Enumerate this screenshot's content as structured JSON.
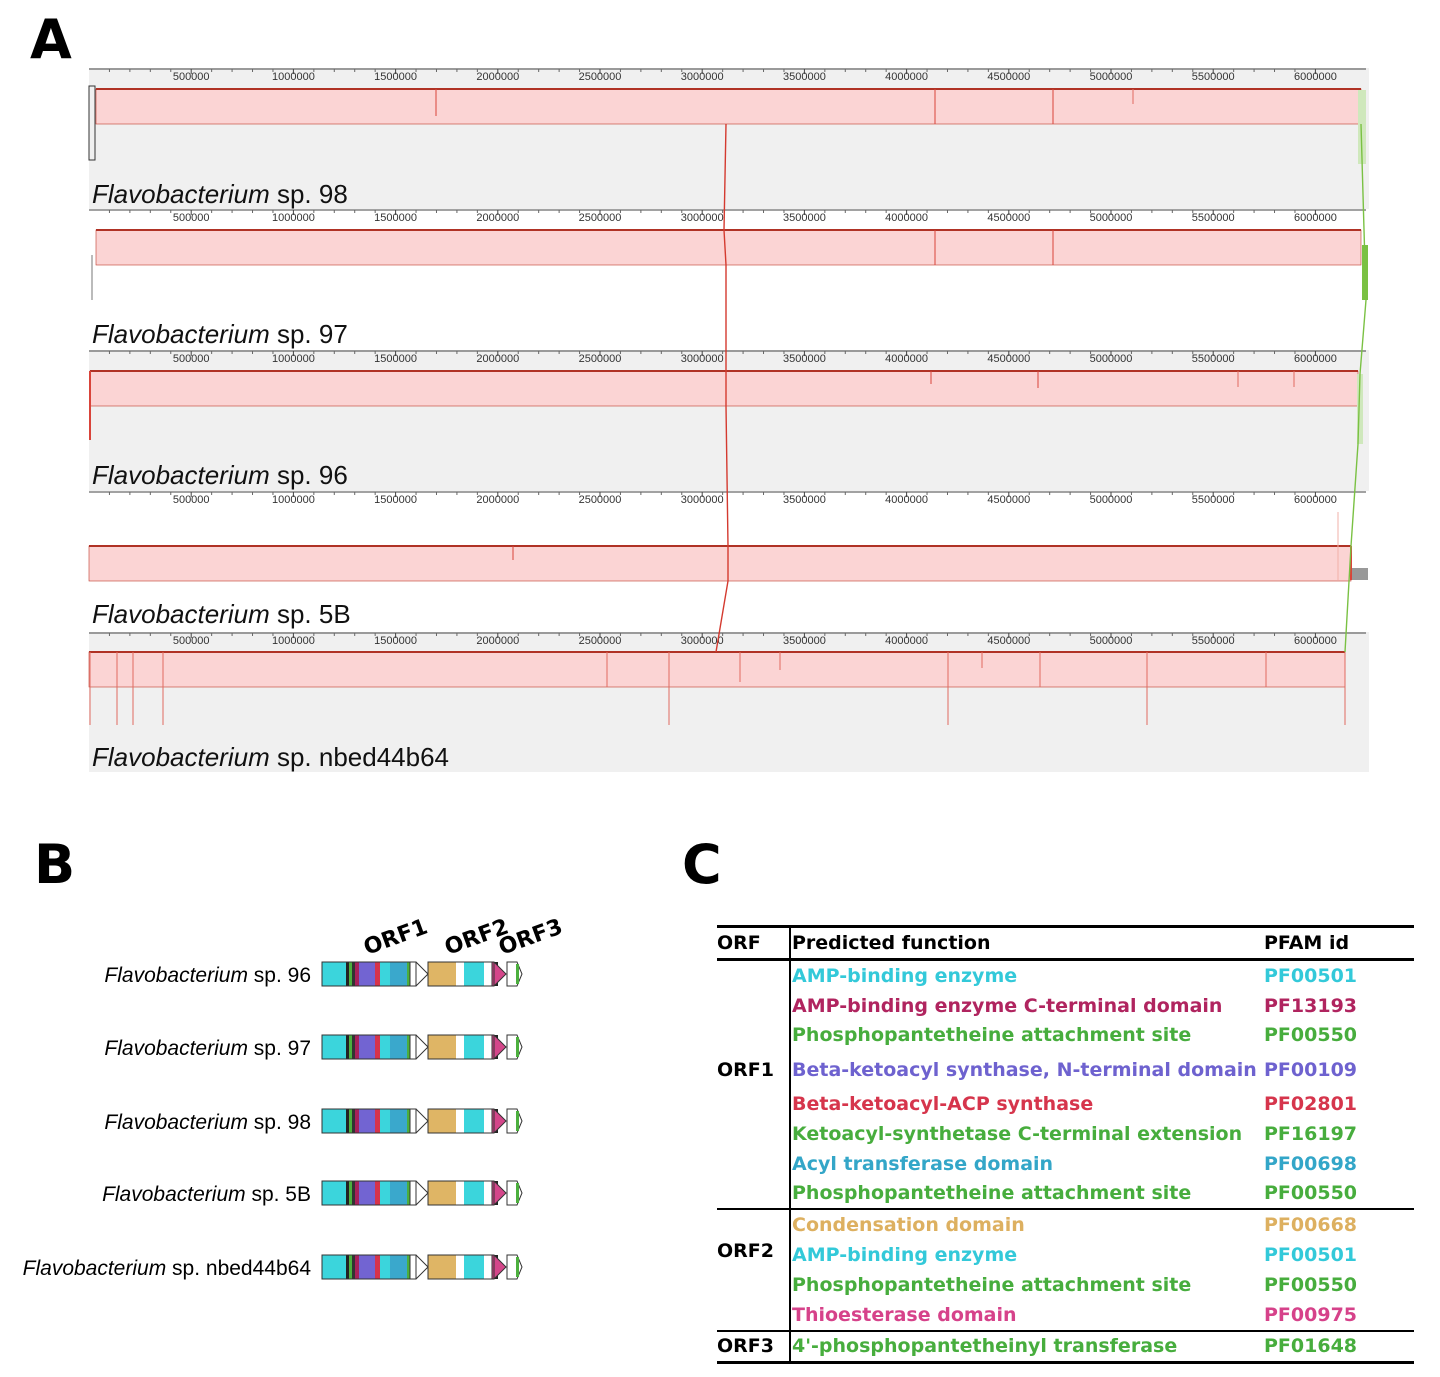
{
  "panel_a": {
    "letter": "A",
    "tick_labels": [
      "500000",
      "1000000",
      "1500000",
      "2000000",
      "2500000",
      "3000000",
      "3500000",
      "4000000",
      "4500000",
      "5000000",
      "5500000",
      "6000000"
    ],
    "genomes": [
      {
        "genus": "Flavobacterium",
        "suffix": " sp. 98"
      },
      {
        "genus": "Flavobacterium",
        "suffix": " sp. 97"
      },
      {
        "genus": "Flavobacterium",
        "suffix": " sp. 96"
      },
      {
        "genus": "Flavobacterium",
        "suffix": " sp. 5B"
      },
      {
        "genus": "Flavobacterium",
        "suffix": " sp. nbed44b64"
      }
    ],
    "colors": {
      "block_fill": "#fbd4d4",
      "block_stroke": "#c0392b",
      "link_red": "#d43a2f",
      "link_green": "#7ac143",
      "track_bg": "#f0f0f0"
    }
  },
  "panel_b": {
    "letter": "B",
    "orf_labels": [
      "ORF1",
      "ORF2",
      "ORF3"
    ],
    "strains": [
      {
        "genus": "Flavobacterium",
        "suffix": " sp. 96"
      },
      {
        "genus": "Flavobacterium",
        "suffix": " sp. 97"
      },
      {
        "genus": "Flavobacterium",
        "suffix": " sp. 98"
      },
      {
        "genus": "Flavobacterium",
        "suffix": " sp. 5B"
      },
      {
        "genus": "Flavobacterium",
        "suffix": " sp. nbed44b64"
      }
    ],
    "colors": {
      "amp": "#3bd5dc",
      "ampC": "#a8205a",
      "ppant": "#4caf3e",
      "ks_n": "#7264d2",
      "ks": "#d6334a",
      "at": "#3aa8cc",
      "cond": "#dfb565",
      "te": "#d4468a"
    }
  },
  "panel_c": {
    "letter": "C",
    "headers": {
      "orf": "ORF",
      "function": "Predicted function",
      "pfam": "PFAM id"
    },
    "rows": [
      {
        "orf": "",
        "function": "AMP-binding enzyme",
        "pfam": "PF00501",
        "color": "#33c9d9"
      },
      {
        "orf": "",
        "function": "AMP-binding enzyme C-terminal domain",
        "pfam": "PF13193",
        "color": "#b0245f"
      },
      {
        "orf": "",
        "function": "Phosphopantetheine attachment site",
        "pfam": "PF00550",
        "color": "#47ad3d"
      },
      {
        "orf": "ORF1",
        "function": "Beta-ketoacyl synthase, N-terminal domain",
        "pfam": "PF00109",
        "color": "#6e62cf"
      },
      {
        "orf": "",
        "function": "Beta-ketoacyl-ACP synthase",
        "pfam": "PF02801",
        "color": "#d6354c"
      },
      {
        "orf": "",
        "function": "Ketoacyl-synthetase C-terminal extension",
        "pfam": "PF16197",
        "color": "#47ad3d"
      },
      {
        "orf": "",
        "function": "Acyl transferase domain",
        "pfam": "PF00698",
        "color": "#33a6c8"
      },
      {
        "orf": "",
        "function": "Phosphopantetheine attachment site",
        "pfam": "PF00550",
        "color": "#47ad3d"
      },
      {
        "orf": "",
        "function": "Condensation domain",
        "pfam": "PF00668",
        "color": "#ddb060"
      },
      {
        "orf": "ORF2",
        "function": "AMP-binding enzyme",
        "pfam": "PF00501",
        "color": "#33c9d9"
      },
      {
        "orf": "",
        "function": "Phosphopantetheine attachment site",
        "pfam": "PF00550",
        "color": "#47ad3d"
      },
      {
        "orf": "",
        "function": "Thioesterase domain",
        "pfam": "PF00975",
        "color": "#d6428a"
      },
      {
        "orf": "ORF3",
        "function": "4'-phosphopantetheinyl transferase",
        "pfam": "PF01648",
        "color": "#47ad3d"
      }
    ]
  }
}
